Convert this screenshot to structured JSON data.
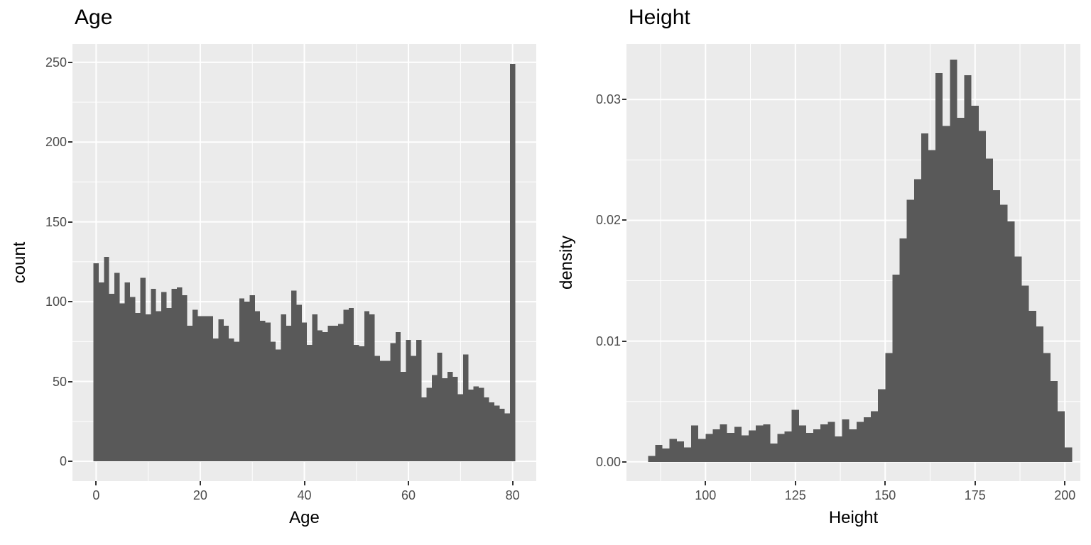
{
  "figure": {
    "background": "#FFFFFF",
    "styles": {
      "panel_bg": "#EBEBEB",
      "bar_fill": "#595959",
      "grid_color": "#FFFFFF",
      "tick_label_color": "#4D4D4D",
      "axis_text_color": "#000000",
      "tick_mark_color": "#333333"
    }
  },
  "chart_data": [
    {
      "type": "bar",
      "subtype": "histogram",
      "title": "Age",
      "xlabel": "Age",
      "ylabel": "count",
      "grid": true,
      "legend": "none",
      "bin_start": -0.5,
      "bin_width": 1,
      "x_ticks": [
        0,
        20,
        40,
        60,
        80
      ],
      "x_tick_labels": [
        "0",
        "20",
        "40",
        "60",
        "80"
      ],
      "x_minor": [
        10,
        30,
        50,
        70
      ],
      "y_ticks": [
        0,
        50,
        100,
        150,
        200,
        250
      ],
      "y_tick_labels": [
        "0",
        "50",
        "100",
        "150",
        "200",
        "250"
      ],
      "y_minor": [
        25,
        75,
        125,
        175,
        225
      ],
      "xlim": [
        -4.55,
        84.55
      ],
      "ylim": [
        -12.45,
        261.45
      ],
      "values": [
        124,
        112,
        128,
        105,
        118,
        99,
        112,
        103,
        93,
        115,
        92,
        108,
        94,
        106,
        96,
        108,
        109,
        104,
        85,
        95,
        91,
        91,
        91,
        77,
        89,
        85,
        77,
        75,
        102,
        100,
        104,
        94,
        88,
        87,
        75,
        70,
        92,
        85,
        107,
        98,
        87,
        73,
        92,
        82,
        81,
        85,
        85,
        86,
        95,
        96,
        73,
        72,
        94,
        92,
        66,
        63,
        63,
        74,
        81,
        56,
        76,
        66,
        76,
        40,
        46,
        54,
        68,
        52,
        56,
        53,
        42,
        67,
        45,
        47,
        46,
        40,
        37,
        35,
        33,
        30,
        249
      ]
    },
    {
      "type": "bar",
      "subtype": "histogram",
      "title": "Height",
      "xlabel": "Height",
      "ylabel": "density",
      "grid": true,
      "legend": "none",
      "bin_start": 84,
      "bin_width": 2,
      "x_ticks": [
        100,
        125,
        150,
        175,
        200
      ],
      "x_tick_labels": [
        "100",
        "125",
        "150",
        "175",
        "200"
      ],
      "x_minor": [
        87.5,
        112.5,
        137.5,
        162.5,
        187.5
      ],
      "y_ticks": [
        0,
        0.01,
        0.02,
        0.03
      ],
      "y_tick_labels": [
        "0.00",
        "0.01",
        "0.02",
        "0.03"
      ],
      "y_minor": [
        0.005,
        0.015,
        0.025
      ],
      "xlim": [
        78.0,
        204.3
      ],
      "ylim": [
        -0.0016,
        0.0346
      ],
      "values": [
        0.0005,
        0.0014,
        0.0011,
        0.0019,
        0.0017,
        0.0012,
        0.003,
        0.0019,
        0.0023,
        0.0027,
        0.0031,
        0.0024,
        0.0029,
        0.0022,
        0.0026,
        0.003,
        0.0031,
        0.0015,
        0.0023,
        0.0025,
        0.0043,
        0.003,
        0.0024,
        0.0027,
        0.0031,
        0.0033,
        0.0021,
        0.0035,
        0.0027,
        0.0033,
        0.0037,
        0.0042,
        0.006,
        0.009,
        0.0155,
        0.0185,
        0.0217,
        0.0234,
        0.0272,
        0.0258,
        0.0322,
        0.0278,
        0.0333,
        0.0285,
        0.032,
        0.0295,
        0.0274,
        0.0251,
        0.0225,
        0.0213,
        0.0199,
        0.017,
        0.0146,
        0.0125,
        0.0112,
        0.009,
        0.0067,
        0.0042,
        0.0012
      ]
    }
  ]
}
